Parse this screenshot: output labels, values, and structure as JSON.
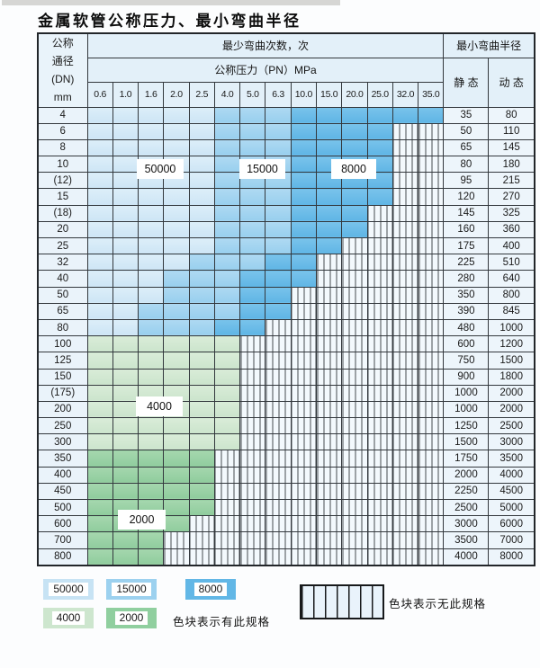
{
  "page": {
    "title": "金属软管公称压力、最小弯曲半径"
  },
  "table": {
    "header": {
      "dn_lines": [
        "公称",
        "通径",
        "(DN)",
        "mm"
      ],
      "bend_cycles_label": "最少弯曲次数，次",
      "pressure_label": "公称压力（PN）MPa",
      "radius_label": "最小弯曲半径",
      "static_label": "静 态",
      "dynamic_label": "动 态"
    }
  },
  "overlays": {
    "o50000": {
      "label": "50000"
    },
    "o15000": {
      "label": "15000"
    },
    "o8000": {
      "label": "8000"
    },
    "o4000": {
      "label": "4000"
    },
    "o2000": {
      "label": "2000"
    }
  },
  "legend": {
    "items": [
      {
        "value": "50000",
        "color": "#c7e3f4"
      },
      {
        "value": "15000",
        "color": "#9cd1ef"
      },
      {
        "value": "8000",
        "color": "#62b7e6"
      },
      {
        "value": "4000",
        "color": "#cde6ce"
      },
      {
        "value": "2000",
        "color": "#90cf9f"
      }
    ],
    "has_spec_label": "色块表示有此规格",
    "no_spec_label": "色块表示无此规格"
  },
  "chart_data": {
    "type": "heatmap",
    "title": "金属软管公称压力、最小弯曲半径",
    "x_label": "公称压力（PN）MPa",
    "y_label": "公称通径 (DN) mm",
    "value_label": "最少弯曲次数，次",
    "columns": [
      "0.6",
      "1.0",
      "1.6",
      "2.0",
      "2.5",
      "4.0",
      "5.0",
      "6.3",
      "10.0",
      "15.0",
      "20.0",
      "25.0",
      "32.0",
      "35.0"
    ],
    "cycle_levels": [
      50000,
      15000,
      8000,
      4000,
      2000
    ],
    "no_spec_meaning": "色块表示无此规格 (hatched = not available)",
    "rows": [
      {
        "dn": "4",
        "cycles": [
          50000,
          50000,
          50000,
          50000,
          50000,
          15000,
          15000,
          15000,
          8000,
          8000,
          8000,
          8000,
          8000,
          8000
        ],
        "static": "35",
        "dynamic": "80"
      },
      {
        "dn": "6",
        "cycles": [
          50000,
          50000,
          50000,
          50000,
          50000,
          15000,
          15000,
          15000,
          8000,
          8000,
          8000,
          8000,
          null,
          null
        ],
        "static": "50",
        "dynamic": "110"
      },
      {
        "dn": "8",
        "cycles": [
          50000,
          50000,
          50000,
          50000,
          50000,
          15000,
          15000,
          15000,
          8000,
          8000,
          8000,
          8000,
          null,
          null
        ],
        "static": "65",
        "dynamic": "145"
      },
      {
        "dn": "10",
        "cycles": [
          50000,
          50000,
          50000,
          50000,
          50000,
          15000,
          15000,
          15000,
          8000,
          8000,
          8000,
          8000,
          null,
          null
        ],
        "static": "80",
        "dynamic": "180"
      },
      {
        "dn": "(12)",
        "cycles": [
          50000,
          50000,
          50000,
          50000,
          50000,
          15000,
          15000,
          15000,
          8000,
          8000,
          8000,
          8000,
          null,
          null
        ],
        "static": "95",
        "dynamic": "215"
      },
      {
        "dn": "15",
        "cycles": [
          50000,
          50000,
          50000,
          50000,
          50000,
          15000,
          15000,
          15000,
          8000,
          8000,
          8000,
          8000,
          null,
          null
        ],
        "static": "120",
        "dynamic": "270"
      },
      {
        "dn": "(18)",
        "cycles": [
          50000,
          50000,
          50000,
          50000,
          50000,
          15000,
          15000,
          15000,
          8000,
          8000,
          8000,
          null,
          null,
          null
        ],
        "static": "145",
        "dynamic": "325"
      },
      {
        "dn": "20",
        "cycles": [
          50000,
          50000,
          50000,
          50000,
          50000,
          15000,
          15000,
          15000,
          8000,
          8000,
          8000,
          null,
          null,
          null
        ],
        "static": "160",
        "dynamic": "360"
      },
      {
        "dn": "25",
        "cycles": [
          50000,
          50000,
          50000,
          50000,
          50000,
          15000,
          15000,
          15000,
          8000,
          8000,
          null,
          null,
          null,
          null
        ],
        "static": "175",
        "dynamic": "400"
      },
      {
        "dn": "32",
        "cycles": [
          50000,
          50000,
          50000,
          50000,
          15000,
          15000,
          15000,
          8000,
          8000,
          null,
          null,
          null,
          null,
          null
        ],
        "static": "225",
        "dynamic": "510"
      },
      {
        "dn": "40",
        "cycles": [
          50000,
          50000,
          50000,
          15000,
          15000,
          15000,
          8000,
          8000,
          8000,
          null,
          null,
          null,
          null,
          null
        ],
        "static": "280",
        "dynamic": "640"
      },
      {
        "dn": "50",
        "cycles": [
          50000,
          50000,
          50000,
          15000,
          15000,
          15000,
          8000,
          8000,
          null,
          null,
          null,
          null,
          null,
          null
        ],
        "static": "350",
        "dynamic": "800"
      },
      {
        "dn": "65",
        "cycles": [
          50000,
          50000,
          15000,
          15000,
          15000,
          15000,
          8000,
          8000,
          null,
          null,
          null,
          null,
          null,
          null
        ],
        "static": "390",
        "dynamic": "845"
      },
      {
        "dn": "80",
        "cycles": [
          50000,
          50000,
          15000,
          15000,
          15000,
          8000,
          8000,
          null,
          null,
          null,
          null,
          null,
          null,
          null
        ],
        "static": "480",
        "dynamic": "1000"
      },
      {
        "dn": "100",
        "cycles": [
          4000,
          4000,
          4000,
          4000,
          4000,
          4000,
          null,
          null,
          null,
          null,
          null,
          null,
          null,
          null
        ],
        "static": "600",
        "dynamic": "1200"
      },
      {
        "dn": "125",
        "cycles": [
          4000,
          4000,
          4000,
          4000,
          4000,
          4000,
          null,
          null,
          null,
          null,
          null,
          null,
          null,
          null
        ],
        "static": "750",
        "dynamic": "1500"
      },
      {
        "dn": "150",
        "cycles": [
          4000,
          4000,
          4000,
          4000,
          4000,
          4000,
          null,
          null,
          null,
          null,
          null,
          null,
          null,
          null
        ],
        "static": "900",
        "dynamic": "1800"
      },
      {
        "dn": "(175)",
        "cycles": [
          4000,
          4000,
          4000,
          4000,
          4000,
          4000,
          null,
          null,
          null,
          null,
          null,
          null,
          null,
          null
        ],
        "static": "1000",
        "dynamic": "2000"
      },
      {
        "dn": "200",
        "cycles": [
          4000,
          4000,
          4000,
          4000,
          4000,
          4000,
          null,
          null,
          null,
          null,
          null,
          null,
          null,
          null
        ],
        "static": "1000",
        "dynamic": "2000"
      },
      {
        "dn": "250",
        "cycles": [
          4000,
          4000,
          4000,
          4000,
          4000,
          4000,
          null,
          null,
          null,
          null,
          null,
          null,
          null,
          null
        ],
        "static": "1250",
        "dynamic": "2500"
      },
      {
        "dn": "300",
        "cycles": [
          4000,
          4000,
          4000,
          4000,
          4000,
          4000,
          null,
          null,
          null,
          null,
          null,
          null,
          null,
          null
        ],
        "static": "1500",
        "dynamic": "3000"
      },
      {
        "dn": "350",
        "cycles": [
          2000,
          2000,
          2000,
          2000,
          2000,
          null,
          null,
          null,
          null,
          null,
          null,
          null,
          null,
          null
        ],
        "static": "1750",
        "dynamic": "3500"
      },
      {
        "dn": "400",
        "cycles": [
          2000,
          2000,
          2000,
          2000,
          2000,
          null,
          null,
          null,
          null,
          null,
          null,
          null,
          null,
          null
        ],
        "static": "2000",
        "dynamic": "4000"
      },
      {
        "dn": "450",
        "cycles": [
          2000,
          2000,
          2000,
          2000,
          2000,
          null,
          null,
          null,
          null,
          null,
          null,
          null,
          null,
          null
        ],
        "static": "2250",
        "dynamic": "4500"
      },
      {
        "dn": "500",
        "cycles": [
          2000,
          2000,
          2000,
          2000,
          2000,
          null,
          null,
          null,
          null,
          null,
          null,
          null,
          null,
          null
        ],
        "static": "2500",
        "dynamic": "5000"
      },
      {
        "dn": "600",
        "cycles": [
          2000,
          2000,
          2000,
          2000,
          null,
          null,
          null,
          null,
          null,
          null,
          null,
          null,
          null,
          null
        ],
        "static": "3000",
        "dynamic": "6000"
      },
      {
        "dn": "700",
        "cycles": [
          2000,
          2000,
          2000,
          null,
          null,
          null,
          null,
          null,
          null,
          null,
          null,
          null,
          null,
          null
        ],
        "static": "3500",
        "dynamic": "7000"
      },
      {
        "dn": "800",
        "cycles": [
          2000,
          2000,
          2000,
          null,
          null,
          null,
          null,
          null,
          null,
          null,
          null,
          null,
          null,
          null
        ],
        "static": "4000",
        "dynamic": "8000"
      }
    ]
  }
}
